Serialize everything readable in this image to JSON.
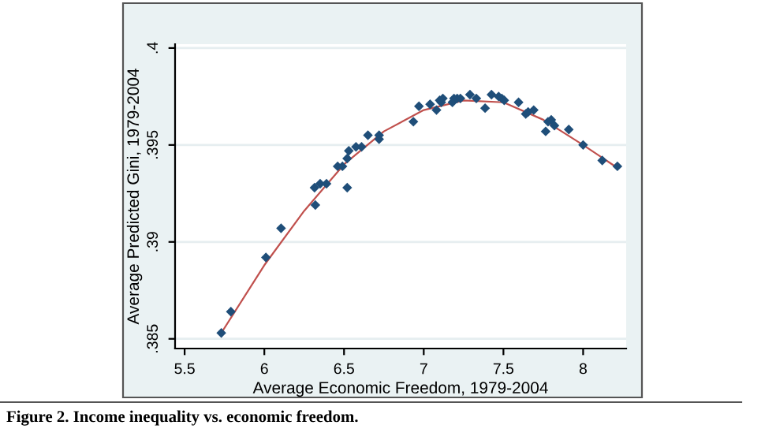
{
  "chart_data": {
    "type": "scatter",
    "xlabel": "Average Economic Freedom, 1979-2004",
    "ylabel": "Average Predicted Gini, 1979-2004",
    "annotations": [
      "Figure 2. Income inequality vs. economic freedom."
    ],
    "xlim": [
      5.44,
      8.27
    ],
    "ylim": [
      0.3845,
      0.4002
    ],
    "xticks": [
      5.5,
      6,
      6.5,
      7,
      7.5,
      8
    ],
    "yticks": [
      {
        "value": 0.385,
        "label": ".385"
      },
      {
        "value": 0.39,
        "label": ".39"
      },
      {
        "value": 0.395,
        "label": ".395"
      },
      {
        "value": 0.4,
        "label": ".4"
      }
    ],
    "grid": "y",
    "series": [
      {
        "marker": "diamond",
        "color": "#1f4e79",
        "x": [
          5.73,
          5.79,
          6.01,
          6.105,
          6.315,
          6.32,
          6.35,
          6.39,
          6.46,
          6.49,
          6.52,
          6.52,
          6.53,
          6.575,
          6.61,
          6.65,
          6.72,
          6.72,
          6.935,
          6.97,
          7.04,
          7.08,
          7.1,
          7.12,
          7.11,
          7.18,
          7.19,
          7.21,
          7.23,
          7.29,
          7.33,
          7.385,
          7.425,
          7.47,
          7.49,
          7.505,
          7.595,
          7.64,
          7.655,
          7.69,
          7.765,
          7.78,
          7.8,
          7.82,
          7.91,
          8.0,
          8.12,
          8.215
        ],
        "values": [
          0.3853,
          0.3864,
          0.3892,
          0.3907,
          0.3928,
          0.3919,
          0.393,
          0.393,
          0.3939,
          0.3939,
          0.3928,
          0.3943,
          0.3947,
          0.3949,
          0.3949,
          0.3955,
          0.3955,
          0.3953,
          0.3962,
          0.397,
          0.3971,
          0.3968,
          0.3973,
          0.3974,
          0.3972,
          0.3972,
          0.3974,
          0.3974,
          0.3974,
          0.3976,
          0.3974,
          0.3969,
          0.3976,
          0.3975,
          0.3974,
          0.3973,
          0.3972,
          0.3966,
          0.3967,
          0.3968,
          0.3957,
          0.3962,
          0.3963,
          0.396,
          0.3958,
          0.395,
          0.3942,
          0.3939
        ]
      },
      {
        "type": "line",
        "color": "#c0504d",
        "line_style": "solid",
        "x": [
          5.73,
          6.0,
          6.25,
          6.5,
          6.75,
          7.0,
          7.25,
          7.5,
          7.75,
          8.0,
          8.2
        ],
        "values": [
          0.3853,
          0.3888,
          0.3916,
          0.394,
          0.3957,
          0.3968,
          0.3973,
          0.3972,
          0.3963,
          0.395,
          0.3939
        ]
      }
    ]
  }
}
